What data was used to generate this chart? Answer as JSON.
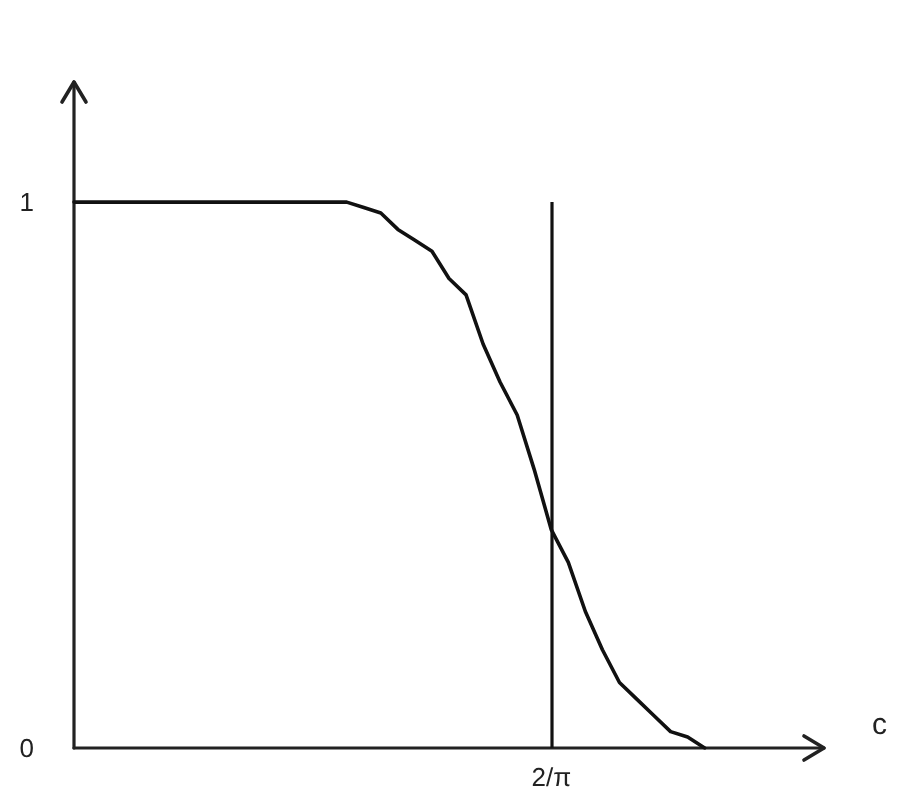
{
  "chart_data": {
    "type": "line",
    "xlabel": "c",
    "categories": [
      null,
      null,
      null,
      null,
      null,
      null,
      null,
      null,
      null,
      null,
      null,
      null,
      null,
      null,
      null,
      null,
      null,
      null,
      null,
      null,
      null,
      null,
      null,
      null,
      null,
      null,
      null,
      null,
      "2/π",
      null,
      null,
      null,
      null,
      null,
      null,
      null,
      null,
      null,
      null,
      null,
      null,
      null,
      null,
      null,
      null
    ],
    "values": [
      1,
      1,
      1,
      1,
      1,
      1,
      1,
      1,
      1,
      1,
      1,
      1,
      1,
      1,
      1,
      1,
      1,
      0.99,
      0.98,
      0.95,
      0.93,
      0.91,
      0.86,
      0.83,
      0.74,
      0.67,
      0.61,
      0.51,
      0.4,
      0.34,
      0.25,
      0.18,
      0.12,
      0.09,
      0.06,
      0.03,
      0.02,
      0,
      null,
      null,
      null,
      null,
      null,
      null,
      null
    ],
    "color": "#111111",
    "marker": "none",
    "ylim": [
      0,
      1.22
    ],
    "yticks": [
      0,
      1
    ],
    "ref_lines": [
      {
        "axis": "x",
        "value": "2/π",
        "color": "#111111"
      }
    ]
  }
}
